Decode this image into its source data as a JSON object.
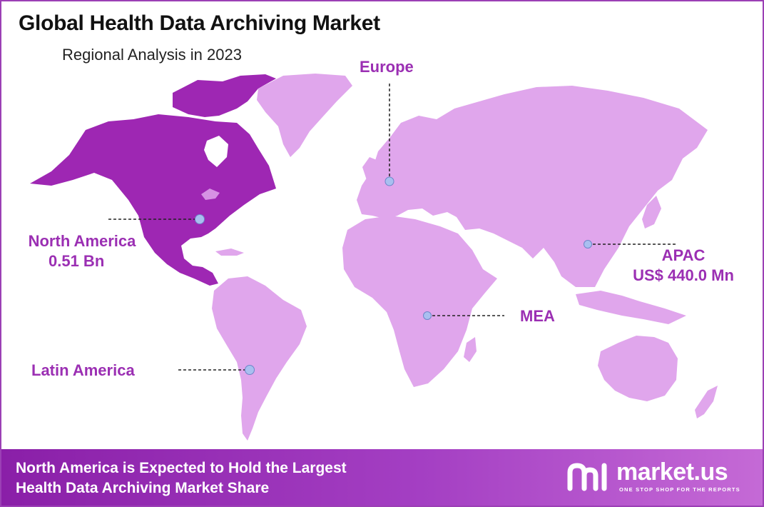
{
  "header": {
    "title": "Global Health Data Archiving Market",
    "subtitle": "Regional Analysis in 2023"
  },
  "regions": [
    {
      "name": "North America",
      "value": "0.51 Bn",
      "highlighted": true
    },
    {
      "name": "Europe",
      "value": ""
    },
    {
      "name": "APAC",
      "value": "US$ 440.0 Mn"
    },
    {
      "name": "MEA",
      "value": ""
    },
    {
      "name": "Latin America",
      "value": ""
    }
  ],
  "footer": {
    "line1": "North America is Expected to Hold the Largest",
    "line2": "Health Data Archiving Market Share"
  },
  "brand": {
    "name": "market.us",
    "tagline": "ONE STOP SHOP FOR THE REPORTS"
  },
  "colors": {
    "highlight": "#9e27b3",
    "land": "#e0a6ec",
    "label": "#9b2fb3",
    "marker": "#a9bff0",
    "footer_start": "#8a1fa8",
    "footer_end": "#c56ad6"
  }
}
